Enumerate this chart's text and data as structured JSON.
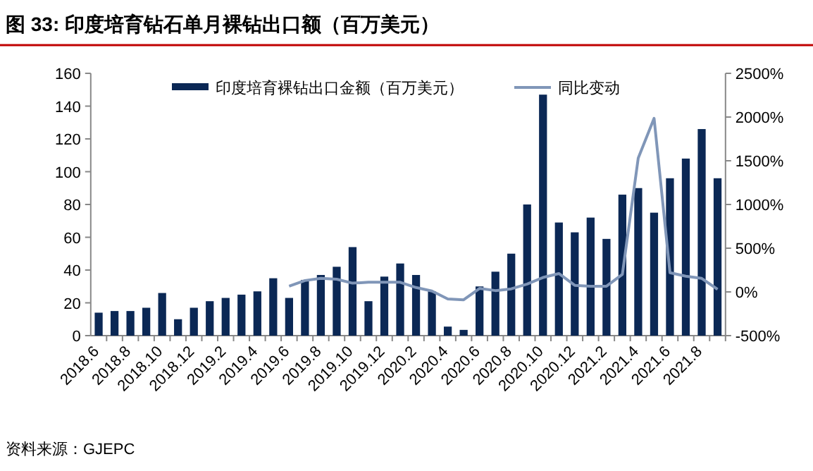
{
  "chart_data": {
    "type": "bar",
    "title": "图 33: 印度培育钻石单月裸钻出口额（百万美元）",
    "categories": [
      "2018.6",
      null,
      "2018.8",
      null,
      "2018.10",
      null,
      "2018.12",
      null,
      "2019.2",
      null,
      "2019.4",
      null,
      "2019.6",
      null,
      "2019.8",
      null,
      "2019.10",
      null,
      "2019.12",
      null,
      "2020.2",
      null,
      "2020.4",
      null,
      "2020.6",
      null,
      "2020.8",
      null,
      "2020.10",
      null,
      "2020.12",
      null,
      "2021.2",
      null,
      "2021.4",
      null,
      "2021.6",
      null,
      "2021.8",
      null
    ],
    "series": [
      {
        "name": "印度培育裸钻出口金额（百万美元）",
        "color": "#0b2855",
        "values": [
          14,
          15,
          15,
          17,
          26,
          10,
          17,
          21,
          23,
          25,
          27,
          35,
          23,
          34,
          37,
          42,
          54,
          21,
          36,
          44,
          37,
          27,
          5.5,
          3.5,
          30,
          39,
          50,
          80,
          147,
          69,
          63,
          72,
          59,
          86,
          90,
          75,
          96,
          108,
          126,
          96
        ]
      },
      {
        "name": "同比变动",
        "type": "line",
        "axis": "y2",
        "color": "#8096b8",
        "values": [
          null,
          null,
          null,
          null,
          null,
          null,
          null,
          null,
          null,
          null,
          null,
          null,
          65,
          130,
          155,
          145,
          100,
          110,
          110,
          110,
          50,
          10,
          -80,
          -90,
          40,
          15,
          35,
          90,
          165,
          210,
          75,
          65,
          65,
          200,
          1530,
          1985,
          220,
          180,
          155,
          30
        ]
      }
    ],
    "ylim": [
      0,
      160
    ],
    "yticks": [
      0,
      20,
      40,
      60,
      80,
      100,
      120,
      140,
      160
    ],
    "y2lim": [
      -500,
      2500
    ],
    "y2ticks": [
      {
        "value": -500,
        "label": "-500%"
      },
      {
        "value": 0,
        "label": "0%"
      },
      {
        "value": 500,
        "label": "500%"
      },
      {
        "value": 1000,
        "label": "1000%"
      },
      {
        "value": 1500,
        "label": "1500%"
      },
      {
        "value": 2000,
        "label": "2000%"
      },
      {
        "value": 2500,
        "label": "2500%"
      }
    ],
    "legend": "top",
    "annotations": [
      "资料来源：GJEPC"
    ]
  }
}
